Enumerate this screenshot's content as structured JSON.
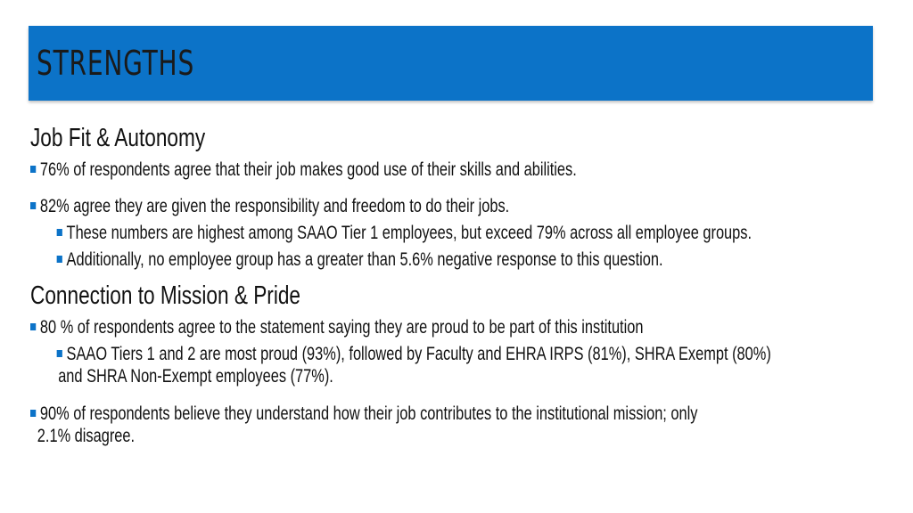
{
  "slide": {
    "title": "STRENGTHS",
    "sections": [
      {
        "heading": "Job Fit & Autonomy",
        "bullets": [
          "76% of respondents agree that their job makes good use of their skills and abilities.",
          "82% agree they are given the responsibility and freedom to do their jobs."
        ],
        "sub_bullets": [
          "These numbers are highest among SAAO Tier 1 employees, but exceed 79% across all employee groups.",
          "Additionally, no employee group has a greater than 5.6% negative response to this question."
        ]
      },
      {
        "heading": "Connection to Mission & Pride",
        "bullets": [
          "80 % of respondents agree to the statement saying they are proud to be part of this institution",
          "90%  of respondents believe they understand how their job contributes to the institutional mission; only",
          "2.1% disagree."
        ],
        "sub_bullets": [
          "SAAO Tiers 1 and 2 are most proud (93%), followed by Faculty and EHRA IRPS (81%), SHRA Exempt (80%)",
          "and SHRA Non-Exempt employees (77%)."
        ]
      }
    ]
  },
  "colors": {
    "accent": "#0c73c8",
    "text": "#111111"
  }
}
